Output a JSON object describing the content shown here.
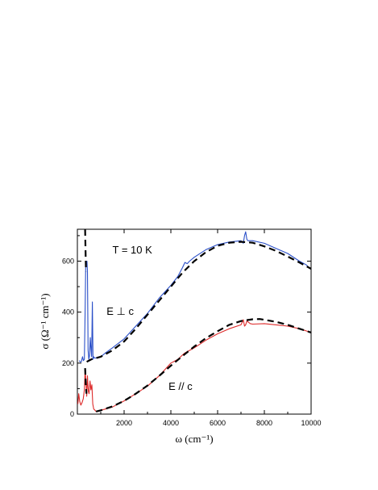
{
  "chart_data": {
    "type": "line",
    "xlabel": "ω (cm⁻¹)",
    "ylabel": "σ (Ω⁻¹ cm⁻¹)",
    "xlim": [
      0,
      10000
    ],
    "ylim": [
      0,
      725
    ],
    "xticks": [
      2000,
      4000,
      6000,
      8000,
      10000
    ],
    "yticks": [
      0,
      200,
      400,
      600
    ],
    "grid": false,
    "legend": "none",
    "annotations": [
      {
        "text": "T = 10 K",
        "x": 1500,
        "y": 630
      },
      {
        "text": "E ⊥ c",
        "x": 1250,
        "y": 390
      },
      {
        "text": "E // c",
        "x": 3900,
        "y": 95
      }
    ],
    "series": [
      {
        "color": "#2a4fc8",
        "style": "solid",
        "x": [
          80,
          120,
          170,
          220,
          260,
          300,
          330,
          360,
          390,
          410,
          430,
          460,
          490,
          520,
          550,
          580,
          610,
          640,
          670,
          700,
          730,
          800,
          1000,
          1200,
          1500,
          2000,
          2500,
          3000,
          3500,
          4000,
          4300,
          4500,
          4600,
          4700,
          4800,
          5000,
          5500,
          6000,
          6500,
          7000,
          7100,
          7150,
          7200,
          7250,
          7300,
          7500,
          8000,
          8500,
          9000,
          9500,
          9800,
          9900,
          10000
        ],
        "y": [
          210,
          205,
          205,
          225,
          210,
          215,
          400,
          600,
          600,
          600,
          560,
          250,
          215,
          230,
          300,
          260,
          225,
          440,
          215,
          225,
          220,
          220,
          225,
          240,
          260,
          295,
          345,
          395,
          455,
          505,
          540,
          575,
          595,
          590,
          600,
          615,
          645,
          665,
          675,
          680,
          670,
          700,
          715,
          685,
          680,
          680,
          670,
          650,
          630,
          600,
          585,
          575,
          570
        ]
      },
      {
        "color": "#000000",
        "style": "dashed",
        "x": [
          400,
          600,
          800,
          1000,
          1500,
          2000,
          2500,
          3000,
          3500,
          4000,
          4500,
          5000,
          5500,
          6000,
          6500,
          7000,
          7500,
          8000,
          8500,
          9000,
          9500,
          10000
        ],
        "y": [
          205,
          215,
          220,
          225,
          250,
          285,
          335,
          390,
          445,
          500,
          555,
          600,
          635,
          660,
          672,
          676,
          672,
          658,
          640,
          618,
          595,
          570
        ]
      },
      {
        "color": "#000000",
        "style": "dashed",
        "x": [
          330,
          360,
          370
        ],
        "y": [
          725,
          600,
          560
        ]
      },
      {
        "color": "#dd2a2a",
        "style": "solid",
        "x": [
          20,
          60,
          100,
          150,
          200,
          250,
          300,
          330,
          360,
          400,
          430,
          470,
          500,
          540,
          580,
          620,
          660,
          700,
          760,
          800,
          1000,
          1200,
          1500,
          2000,
          2500,
          3000,
          3500,
          4000,
          4300,
          4500,
          4600,
          4700,
          5000,
          5500,
          6000,
          6500,
          7000,
          7100,
          7150,
          7200,
          7250,
          7400,
          7500,
          8000,
          8500,
          9000,
          9500,
          10000
        ],
        "y": [
          40,
          80,
          50,
          35,
          45,
          60,
          95,
          175,
          140,
          70,
          150,
          90,
          80,
          130,
          95,
          115,
          40,
          20,
          15,
          10,
          15,
          20,
          28,
          52,
          80,
          110,
          150,
          200,
          215,
          232,
          240,
          245,
          260,
          290,
          315,
          335,
          350,
          370,
          345,
          350,
          365,
          355,
          353,
          355,
          350,
          345,
          335,
          320
        ]
      },
      {
        "color": "#000000",
        "style": "dashed",
        "x": [
          800,
          1000,
          1500,
          2000,
          2500,
          3000,
          3500,
          4000,
          4500,
          5000,
          5500,
          6000,
          6500,
          7000,
          7500,
          7800,
          8000,
          8500,
          9000,
          9500,
          10000
        ],
        "y": [
          10,
          15,
          30,
          52,
          80,
          112,
          150,
          190,
          228,
          265,
          298,
          325,
          350,
          365,
          372,
          373,
          370,
          362,
          350,
          335,
          320
        ]
      },
      {
        "color": "#000000",
        "style": "dashed",
        "x": [
          330,
          360,
          390
        ],
        "y": [
          180,
          120,
          80
        ]
      }
    ]
  }
}
